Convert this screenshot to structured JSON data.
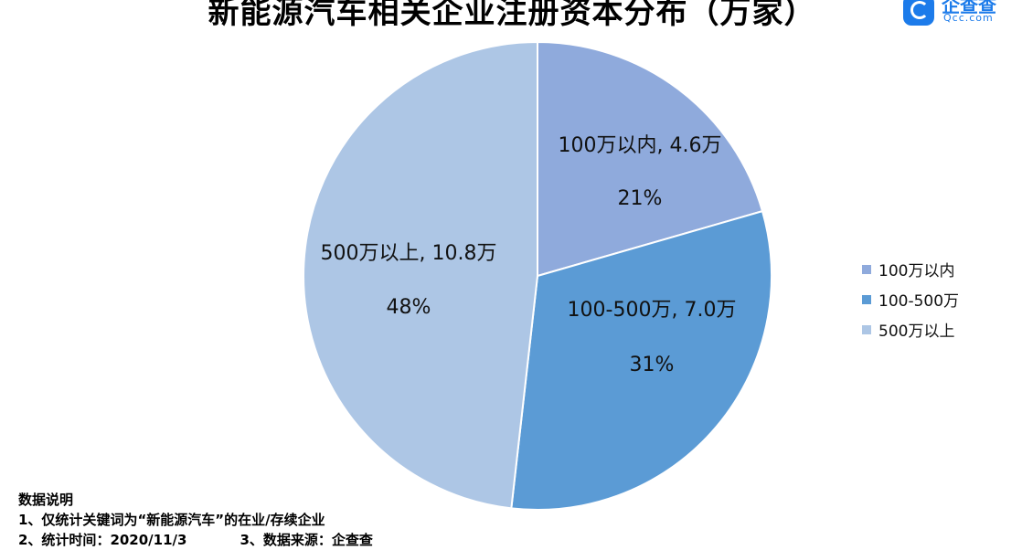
{
  "title": "新能源汽车相关企业注册资本分布（万家）",
  "logo": {
    "cn": "企查查",
    "en": "Qcc.com"
  },
  "chart_data": {
    "type": "pie",
    "title": "新能源汽车相关企业注册资本分布（万家）",
    "slices": [
      {
        "name": "100万以内",
        "value": 4.6,
        "value_label": "4.6万",
        "percent_label": "21%",
        "color": "#8faadc"
      },
      {
        "name": "100-500万",
        "value": 7.0,
        "value_label": "7.0万",
        "percent_label": "31%",
        "color": "#5b9bd5"
      },
      {
        "name": "500万以上",
        "value": 10.8,
        "value_label": "10.8万",
        "percent_label": "48%",
        "color": "#adc6e5"
      }
    ],
    "legend_position": "right"
  },
  "notes": {
    "heading": "数据说明",
    "line1": "1、仅统计关键词为“新能源汽车”的在业/存续企业",
    "line2a": "2、统计时间：2020/11/3",
    "line2b": "3、数据来源：企查查"
  }
}
